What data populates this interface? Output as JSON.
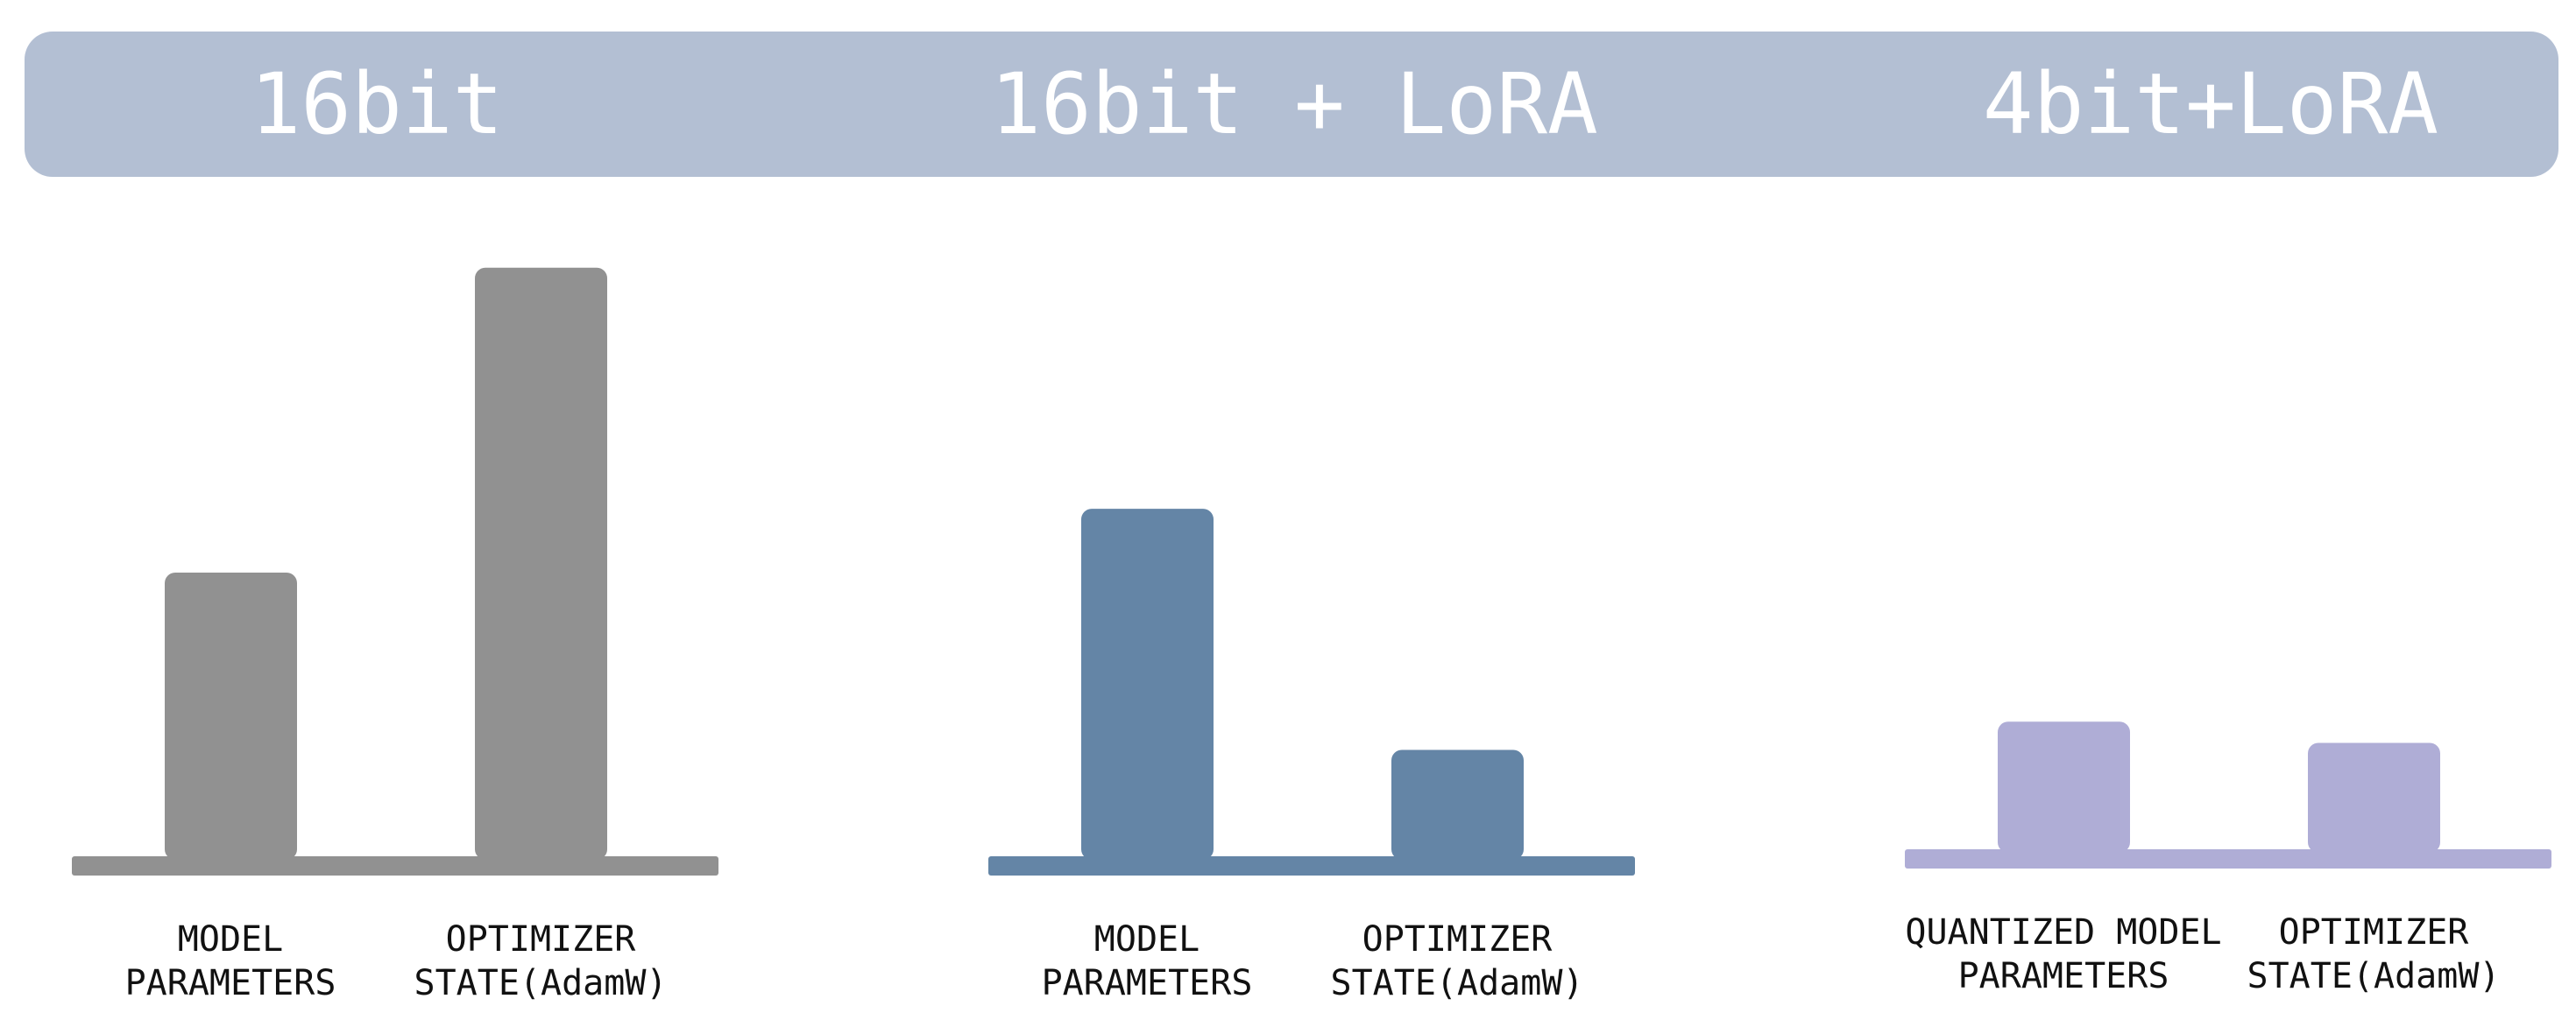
{
  "chart_data": [
    {
      "type": "bar",
      "title": "16bit",
      "categories": [
        [
          "MODEL",
          "PARAMETERS"
        ],
        [
          "OPTIMIZER",
          "STATE(AdamW)"
        ]
      ],
      "values": [
        40,
        83
      ],
      "color": "#919191"
    },
    {
      "type": "bar",
      "title": "16bit + LoRA",
      "categories": [
        [
          "MODEL",
          "PARAMETERS"
        ],
        [
          "OPTIMIZER",
          "STATE(AdamW)"
        ]
      ],
      "values": [
        49,
        15
      ],
      "color": "#6485a6"
    },
    {
      "type": "bar",
      "title": "4bit+LoRA",
      "categories": [
        [
          "QUANTIZED MODEL",
          "PARAMETERS"
        ],
        [
          "OPTIMIZER",
          "STATE(AdamW)"
        ]
      ],
      "values": [
        18,
        15
      ],
      "color": "#afadd6"
    }
  ],
  "header_band_color": "#b3bfd3",
  "ylim": [
    0,
    100
  ],
  "grid": false,
  "legend": "none"
}
